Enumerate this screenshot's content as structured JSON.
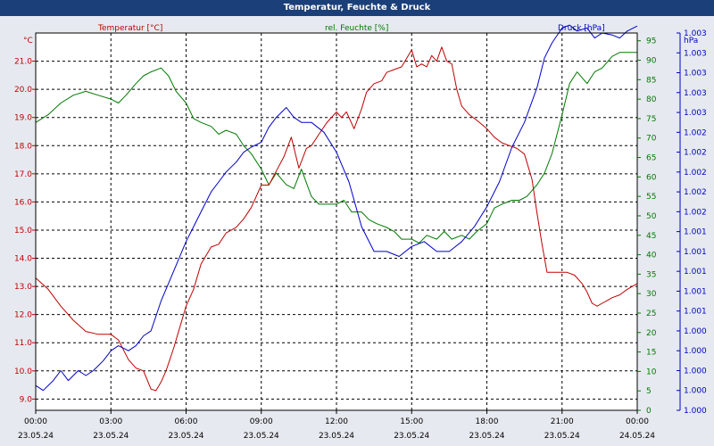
{
  "title": "Temperatur, Feuchte & Druck",
  "colors": {
    "temperature": "#c00000",
    "humidity": "#007800",
    "pressure": "#0000c8",
    "titlebar": "#1b3f78",
    "plot_bg": "#ffffff",
    "page_bg": "#e6eaf0"
  },
  "chart_data": {
    "type": "line",
    "title": "Temperatur, Feuchte & Druck",
    "x_hours_range": [
      0,
      24
    ],
    "x_ticks": [
      {
        "hour": 0,
        "time": "00:00",
        "date": "23.05.24"
      },
      {
        "hour": 3,
        "time": "03:00",
        "date": "23.05.24"
      },
      {
        "hour": 6,
        "time": "06:00",
        "date": "23.05.24"
      },
      {
        "hour": 9,
        "time": "09:00",
        "date": "23.05.24"
      },
      {
        "hour": 12,
        "time": "12:00",
        "date": "23.05.24"
      },
      {
        "hour": 15,
        "time": "15:00",
        "date": "23.05.24"
      },
      {
        "hour": 18,
        "time": "18:00",
        "date": "23.05.24"
      },
      {
        "hour": 21,
        "time": "21:00",
        "date": "23.05.24"
      },
      {
        "hour": 24,
        "time": "00:00",
        "date": "24.05.24"
      }
    ],
    "axes": {
      "temperature": {
        "title": "Temperatur [°C]",
        "unit": "°C",
        "range": [
          8.6,
          22.0
        ],
        "ticks": [
          {
            "value": 9.0,
            "label": "9.0"
          },
          {
            "value": 10.0,
            "label": "10.0"
          },
          {
            "value": 11.0,
            "label": "11.0"
          },
          {
            "value": 12.0,
            "label": "12.0"
          },
          {
            "value": 13.0,
            "label": "13.0"
          },
          {
            "value": 14.0,
            "label": "14.0"
          },
          {
            "value": 15.0,
            "label": "15.0"
          },
          {
            "value": 16.0,
            "label": "16.0"
          },
          {
            "value": 17.0,
            "label": "17.0"
          },
          {
            "value": 18.0,
            "label": "18.0"
          },
          {
            "value": 19.0,
            "label": "19.0"
          },
          {
            "value": 20.0,
            "label": "20.0"
          },
          {
            "value": 21.0,
            "label": "21.0"
          }
        ]
      },
      "humidity": {
        "title": "rel. Feuchte [%]",
        "unit": "%",
        "range": [
          0,
          97
        ],
        "ticks": [
          {
            "value": 0,
            "label": "0"
          },
          {
            "value": 5,
            "label": "5"
          },
          {
            "value": 10,
            "label": "10"
          },
          {
            "value": 15,
            "label": "15"
          },
          {
            "value": 20,
            "label": "20"
          },
          {
            "value": 25,
            "label": "25"
          },
          {
            "value": 30,
            "label": "30"
          },
          {
            "value": 35,
            "label": "35"
          },
          {
            "value": 40,
            "label": "40"
          },
          {
            "value": 45,
            "label": "45"
          },
          {
            "value": 50,
            "label": "50"
          },
          {
            "value": 55,
            "label": "55"
          },
          {
            "value": 60,
            "label": "60"
          },
          {
            "value": 65,
            "label": "65"
          },
          {
            "value": 70,
            "label": "70"
          },
          {
            "value": 75,
            "label": "75"
          },
          {
            "value": 80,
            "label": "80"
          },
          {
            "value": 85,
            "label": "85"
          },
          {
            "value": 90,
            "label": "90"
          },
          {
            "value": 95,
            "label": "95"
          }
        ]
      },
      "pressure": {
        "title": "Druck [hPa]",
        "unit": "hPa",
        "range": [
          1000.0,
          1003.8
        ],
        "tick_start": 1000.0,
        "tick_step": 0.2,
        "tick_labels": [
          "1.000",
          "1.000",
          "1.000",
          "1.000",
          "1.000",
          "1.001",
          "1.001",
          "1.001",
          "1.001",
          "1.001",
          "1.002",
          "1.002",
          "1.002",
          "1.002",
          "1.002",
          "1.003",
          "1.003",
          "1.003",
          "1.003",
          "1.003"
        ]
      }
    },
    "series": [
      {
        "name": "Temperatur",
        "unit": "°C",
        "color": "#c00000",
        "x": [
          0,
          0.5,
          1,
          1.5,
          2,
          2.5,
          3,
          3.3,
          3.7,
          4,
          4.3,
          4.6,
          4.8,
          5,
          5.2,
          5.5,
          6,
          6.3,
          6.6,
          7,
          7.3,
          7.6,
          8,
          8.3,
          8.6,
          9,
          9.3,
          9.6,
          9.9,
          10.2,
          10.5,
          10.8,
          11,
          11.3,
          11.6,
          12,
          12.2,
          12.4,
          12.7,
          13,
          13.2,
          13.5,
          13.8,
          14,
          14.3,
          14.6,
          15,
          15.2,
          15.4,
          15.6,
          15.8,
          16,
          16.2,
          16.4,
          16.6,
          16.8,
          17,
          17.3,
          17.6,
          18,
          18.3,
          18.6,
          18.9,
          19.2,
          19.5,
          19.8,
          20,
          20.2,
          20.4,
          20.6,
          20.9,
          21.2,
          21.5,
          21.8,
          22,
          22.2,
          22.4,
          22.6,
          22.8,
          23,
          23.3,
          23.6,
          24
        ],
        "values": [
          13.3,
          12.9,
          12.3,
          11.8,
          11.4,
          11.3,
          11.3,
          11.1,
          10.4,
          10.1,
          10.0,
          9.35,
          9.3,
          9.6,
          10.0,
          10.8,
          12.3,
          12.9,
          13.8,
          14.4,
          14.5,
          14.9,
          15.1,
          15.4,
          15.8,
          16.6,
          16.6,
          17.1,
          17.6,
          18.3,
          17.2,
          17.9,
          18.0,
          18.4,
          18.8,
          19.2,
          19.0,
          19.2,
          18.6,
          19.3,
          19.9,
          20.2,
          20.3,
          20.6,
          20.7,
          20.8,
          21.4,
          20.8,
          20.9,
          20.8,
          21.2,
          21.0,
          21.5,
          21.0,
          20.9,
          20.0,
          19.4,
          19.1,
          18.9,
          18.6,
          18.3,
          18.1,
          18.0,
          17.9,
          17.7,
          16.8,
          15.6,
          14.5,
          13.5,
          13.5,
          13.5,
          13.5,
          13.4,
          13.1,
          12.8,
          12.4,
          12.3,
          12.4,
          12.5,
          12.6,
          12.7,
          12.9,
          13.1
        ]
      },
      {
        "name": "rel. Feuchte",
        "unit": "%",
        "color": "#007800",
        "x": [
          0,
          0.5,
          1,
          1.5,
          2,
          2.5,
          3,
          3.3,
          3.6,
          4,
          4.3,
          4.6,
          5,
          5.3,
          5.6,
          6,
          6.3,
          6.6,
          7,
          7.3,
          7.6,
          8,
          8.3,
          8.6,
          9,
          9.3,
          9.6,
          10,
          10.3,
          10.6,
          11,
          11.3,
          11.6,
          12,
          12.3,
          12.6,
          13,
          13.3,
          13.6,
          14,
          14.3,
          14.6,
          15,
          15.3,
          15.6,
          16,
          16.3,
          16.6,
          17,
          17.3,
          17.6,
          18,
          18.3,
          18.6,
          19,
          19.3,
          19.6,
          20,
          20.3,
          20.6,
          21,
          21.3,
          21.6,
          22,
          22.3,
          22.6,
          23,
          23.3,
          23.6,
          24
        ],
        "values": [
          74,
          76,
          79,
          81,
          82,
          81,
          80,
          79,
          81,
          84,
          86,
          87,
          88,
          86,
          82,
          79,
          75,
          74,
          73,
          71,
          72,
          71,
          68,
          66,
          62,
          58,
          61,
          58,
          57,
          62,
          55,
          53,
          53,
          53,
          54,
          51,
          51,
          49,
          48,
          47,
          46,
          44,
          44,
          43,
          45,
          44,
          46,
          44,
          45,
          44,
          46,
          48,
          52,
          53,
          54,
          54,
          55,
          58,
          61,
          66,
          76,
          84,
          87,
          84,
          87,
          88,
          91,
          92,
          92,
          92
        ],
        "right_axis_extra": null
      },
      {
        "name": "Druck",
        "unit": "hPa",
        "color": "#0000c8",
        "x": [
          0,
          0.3,
          0.7,
          1,
          1.3,
          1.7,
          2,
          2.3,
          2.7,
          3,
          3.3,
          3.7,
          4,
          4.3,
          4.6,
          5,
          5.5,
          6,
          6.3,
          6.6,
          7,
          7.3,
          7.6,
          8,
          8.3,
          8.6,
          9,
          9.3,
          9.6,
          10,
          10.3,
          10.6,
          11,
          11.5,
          12,
          12.5,
          13,
          13.5,
          14,
          14.5,
          15,
          15.5,
          16,
          16.5,
          17,
          17.5,
          18,
          18.5,
          19,
          19.5,
          20,
          20.3,
          20.6,
          21,
          21.3,
          21.6,
          22,
          22.3,
          22.6,
          23,
          23.3,
          23.6,
          24
        ],
        "values": [
          1000.25,
          1000.2,
          1000.3,
          1000.4,
          1000.3,
          1000.4,
          1000.35,
          1000.4,
          1000.5,
          1000.6,
          1000.65,
          1000.6,
          1000.65,
          1000.75,
          1000.8,
          1001.1,
          1001.4,
          1001.7,
          1001.85,
          1002.0,
          1002.2,
          1002.3,
          1002.4,
          1002.5,
          1002.6,
          1002.65,
          1002.7,
          1002.85,
          1002.95,
          1003.05,
          1002.95,
          1002.9,
          1002.9,
          1002.8,
          1002.6,
          1002.3,
          1001.85,
          1001.6,
          1001.6,
          1001.55,
          1001.65,
          1001.7,
          1001.6,
          1001.6,
          1001.7,
          1001.85,
          1002.05,
          1002.3,
          1002.65,
          1002.9,
          1003.25,
          1003.55,
          1003.7,
          1003.85,
          1003.88,
          1003.82,
          1003.85,
          1003.75,
          1003.8,
          1003.78,
          1003.75,
          1003.82,
          1003.87
        ]
      }
    ]
  }
}
